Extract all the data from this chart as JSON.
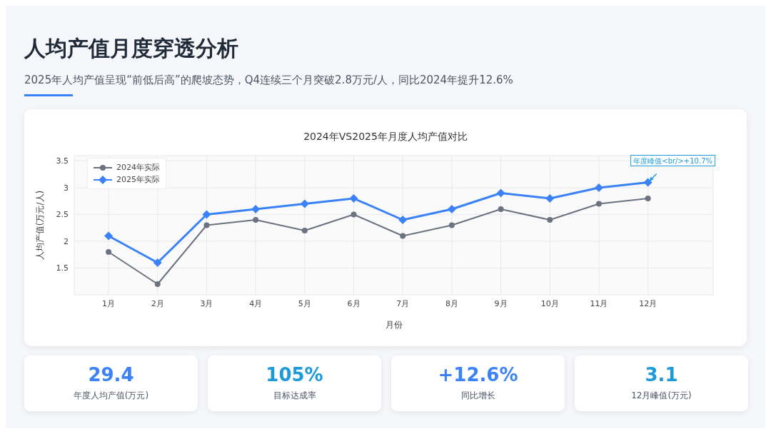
{
  "chart_data": [
    {
      "type": "other",
      "title": "人均产值月度穿透分析",
      "subtitle": "2025年人均产值呈现“前低后高”的爬坡态势，Q4连续三个月突破2.8万元/人，同比2024年提升12.6%"
    },
    {
      "type": "line",
      "title": "2024年VS2025年月度人均产值对比",
      "xlabel": "月份",
      "ylabel": "人均产值(万元/人)",
      "categories": [
        "1月",
        "2月",
        "3月",
        "4月",
        "5月",
        "6月",
        "7月",
        "8月",
        "9月",
        "10月",
        "11月",
        "12月"
      ],
      "series": [
        {
          "name": "2024年实际",
          "color": "#6b7280",
          "marker": "circle",
          "values": [
            1.8,
            1.2,
            2.3,
            2.4,
            2.2,
            2.5,
            2.1,
            2.3,
            2.6,
            2.4,
            2.7,
            2.8
          ]
        },
        {
          "name": "2025年实际",
          "color": "#3b82f6",
          "marker": "diamond",
          "values": [
            2.1,
            1.6,
            2.5,
            2.6,
            2.7,
            2.8,
            2.4,
            2.6,
            2.9,
            2.8,
            3.0,
            3.1
          ]
        }
      ],
      "ylim": [
        1,
        3.6
      ],
      "yticks": [
        1.5,
        2,
        2.5,
        3,
        3.5
      ],
      "grid": true,
      "legend": "top left",
      "annotations": [
        {
          "text": "年度峰值<br/>+10.7%",
          "x": "12月",
          "y": 3.1
        }
      ]
    },
    {
      "type": "other",
      "annotations": [
        "29.4",
        "年度人均产值(万元)",
        "105%",
        "目标达成率",
        "+12.6%",
        "同比增长",
        "3.1",
        "12月峰值(万元)"
      ]
    }
  ]
}
